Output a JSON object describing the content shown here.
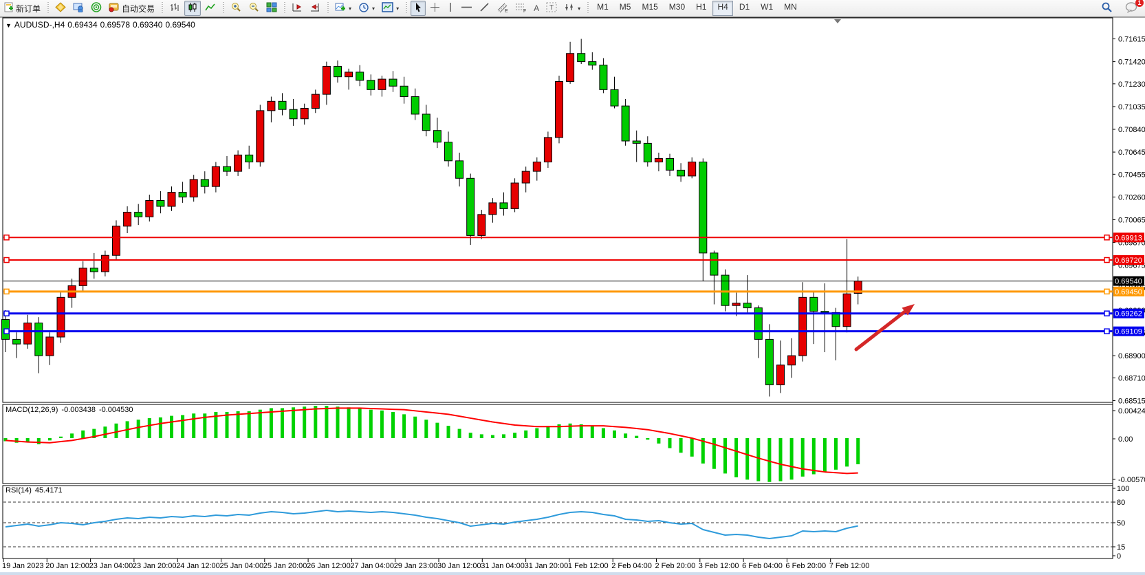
{
  "toolbar": {
    "new_order": "新订单",
    "autotrading": "自动交易",
    "timeframes": [
      "M1",
      "M5",
      "M15",
      "M30",
      "H1",
      "H4",
      "D1",
      "W1",
      "MN"
    ],
    "active_timeframe": "H4",
    "chat_badge": "1"
  },
  "chart": {
    "symbol_period": "AUDUSD-,H4",
    "ohlc": {
      "open": "0.69434",
      "high": "0.69578",
      "low": "0.69340",
      "close": "0.69540"
    },
    "macd_name": "MACD(12,26,9)",
    "macd_value": "-0.003438",
    "macd_signal_value": "-0.004530",
    "rsi_name": "RSI(14)",
    "rsi_value": "45.4171"
  },
  "chart_data": {
    "type": "candlestick",
    "title": "AUDUSD- H4",
    "colors": {
      "bull": "#e60000",
      "bear": "#00cc00",
      "wick": "#000000",
      "macd_hist": "#00d200",
      "macd_signal": "#ff0000",
      "rsi_line": "#2f9bdb",
      "line_red": "#ee0000",
      "line_orange": "#ff9800",
      "line_blue": "#0000ee",
      "line_black": "#000000",
      "arrow": "#d42727"
    },
    "price_axis_ticks": [
      "0.71615",
      "0.71420",
      "0.71230",
      "0.71035",
      "0.70840",
      "0.70645",
      "0.70455",
      "0.70260",
      "0.70065",
      "0.69870",
      "0.69675",
      "0.69485",
      "0.69290",
      "0.69095",
      "0.68900",
      "0.68710",
      "0.68515"
    ],
    "hlines": [
      {
        "price": 0.69913,
        "label": "0.69913",
        "color": "#ee0000",
        "width": 2,
        "handles": true
      },
      {
        "price": 0.6972,
        "label": "0.69720",
        "color": "#ee0000",
        "width": 2,
        "handles": true
      },
      {
        "price": 0.6954,
        "label": "0.69540",
        "color": "#000000",
        "width": 1,
        "handles": false
      },
      {
        "price": 0.6945,
        "label": "0.69450",
        "color": "#ff9800",
        "width": 3,
        "handles": true
      },
      {
        "price": 0.69262,
        "label": "0.69262",
        "color": "#0000ee",
        "width": 3,
        "handles": true
      },
      {
        "price": 0.69109,
        "label": "0.69109",
        "color": "#0000ee",
        "width": 3,
        "handles": true
      }
    ],
    "current_price": 0.6954,
    "candles": [
      [
        0.6921,
        0.6929,
        0.6893,
        0.6904
      ],
      [
        0.6904,
        0.691,
        0.6888,
        0.69
      ],
      [
        0.69,
        0.6925,
        0.6896,
        0.6918
      ],
      [
        0.6918,
        0.6923,
        0.6875,
        0.689
      ],
      [
        0.689,
        0.691,
        0.6882,
        0.6906
      ],
      [
        0.6906,
        0.6945,
        0.6901,
        0.694
      ],
      [
        0.694,
        0.6956,
        0.6931,
        0.695
      ],
      [
        0.695,
        0.6971,
        0.6945,
        0.6965
      ],
      [
        0.6965,
        0.6978,
        0.6956,
        0.6962
      ],
      [
        0.6962,
        0.698,
        0.6958,
        0.6976
      ],
      [
        0.6976,
        0.7006,
        0.6972,
        0.7001
      ],
      [
        0.7001,
        0.7018,
        0.6995,
        0.7013
      ],
      [
        0.7013,
        0.702,
        0.7002,
        0.7009
      ],
      [
        0.7009,
        0.7028,
        0.7005,
        0.7023
      ],
      [
        0.7023,
        0.7031,
        0.7012,
        0.7018
      ],
      [
        0.7018,
        0.7035,
        0.7014,
        0.703
      ],
      [
        0.703,
        0.7039,
        0.7021,
        0.7026
      ],
      [
        0.7026,
        0.7045,
        0.7022,
        0.7041
      ],
      [
        0.7041,
        0.7048,
        0.7029,
        0.7035
      ],
      [
        0.7035,
        0.7056,
        0.703,
        0.7052
      ],
      [
        0.7052,
        0.7061,
        0.7044,
        0.7048
      ],
      [
        0.7048,
        0.7066,
        0.7044,
        0.7062
      ],
      [
        0.7062,
        0.707,
        0.705,
        0.7056
      ],
      [
        0.7056,
        0.7105,
        0.7052,
        0.71
      ],
      [
        0.71,
        0.7112,
        0.709,
        0.7108
      ],
      [
        0.7108,
        0.7115,
        0.7096,
        0.7101
      ],
      [
        0.7101,
        0.711,
        0.7087,
        0.7093
      ],
      [
        0.7093,
        0.7106,
        0.7088,
        0.7102
      ],
      [
        0.7102,
        0.7118,
        0.7098,
        0.7114
      ],
      [
        0.7114,
        0.7142,
        0.7105,
        0.7138
      ],
      [
        0.7138,
        0.7143,
        0.7124,
        0.7129
      ],
      [
        0.7129,
        0.7136,
        0.7118,
        0.7133
      ],
      [
        0.7133,
        0.7139,
        0.7121,
        0.7126
      ],
      [
        0.7126,
        0.7131,
        0.7113,
        0.7118
      ],
      [
        0.7118,
        0.713,
        0.7112,
        0.7127
      ],
      [
        0.7127,
        0.7134,
        0.7116,
        0.7121
      ],
      [
        0.7121,
        0.7129,
        0.7106,
        0.7112
      ],
      [
        0.7112,
        0.7119,
        0.7092,
        0.7097
      ],
      [
        0.7097,
        0.7105,
        0.7078,
        0.7083
      ],
      [
        0.7083,
        0.7094,
        0.7068,
        0.7073
      ],
      [
        0.7073,
        0.7082,
        0.7052,
        0.7057
      ],
      [
        0.7057,
        0.7064,
        0.7035,
        0.7042
      ],
      [
        0.7042,
        0.7046,
        0.6985,
        0.6993
      ],
      [
        0.6993,
        0.7015,
        0.699,
        0.7011
      ],
      [
        0.7011,
        0.7025,
        0.7004,
        0.7021
      ],
      [
        0.7021,
        0.703,
        0.701,
        0.7016
      ],
      [
        0.7016,
        0.7042,
        0.7013,
        0.7038
      ],
      [
        0.7038,
        0.7052,
        0.703,
        0.7048
      ],
      [
        0.7048,
        0.706,
        0.704,
        0.7056
      ],
      [
        0.7056,
        0.7082,
        0.7051,
        0.7077
      ],
      [
        0.7077,
        0.713,
        0.7072,
        0.7125
      ],
      [
        0.7125,
        0.7159,
        0.7123,
        0.7149
      ],
      [
        0.7149,
        0.71615,
        0.714,
        0.7142
      ],
      [
        0.7142,
        0.715,
        0.7135,
        0.7139
      ],
      [
        0.7139,
        0.7145,
        0.7115,
        0.7118
      ],
      [
        0.7118,
        0.7129,
        0.7102,
        0.7104
      ],
      [
        0.7104,
        0.711,
        0.707,
        0.7074
      ],
      [
        0.7074,
        0.7083,
        0.7056,
        0.7072
      ],
      [
        0.7072,
        0.7078,
        0.7052,
        0.7056
      ],
      [
        0.7056,
        0.7064,
        0.7048,
        0.7059
      ],
      [
        0.7059,
        0.7063,
        0.7044,
        0.7049
      ],
      [
        0.7049,
        0.7055,
        0.7039,
        0.7044
      ],
      [
        0.7044,
        0.706,
        0.7042,
        0.7056
      ],
      [
        0.7056,
        0.7059,
        0.6954,
        0.6978
      ],
      [
        0.6978,
        0.698,
        0.6934,
        0.6959
      ],
      [
        0.6959,
        0.6964,
        0.6928,
        0.6933
      ],
      [
        0.6933,
        0.6944,
        0.6924,
        0.6935
      ],
      [
        0.6935,
        0.6959,
        0.6927,
        0.6931
      ],
      [
        0.6931,
        0.6933,
        0.6888,
        0.6904
      ],
      [
        0.6904,
        0.6917,
        0.6855,
        0.6865
      ],
      [
        0.6865,
        0.6903,
        0.6858,
        0.6882
      ],
      [
        0.6882,
        0.6905,
        0.6871,
        0.689
      ],
      [
        0.689,
        0.6953,
        0.6885,
        0.694
      ],
      [
        0.694,
        0.6945,
        0.69,
        0.6928
      ],
      [
        0.6928,
        0.6952,
        0.6893,
        0.6927
      ],
      [
        0.6927,
        0.6931,
        0.6886,
        0.6915
      ],
      [
        0.6915,
        0.699,
        0.691,
        0.6943
      ],
      [
        0.69434,
        0.69578,
        0.6934,
        0.6954
      ]
    ],
    "macd": {
      "params": "12,26,9",
      "axis": [
        "0.004243",
        "0.00",
        "-0.005709"
      ],
      "histogram": [
        -0.0004,
        -0.0006,
        -0.0005,
        -0.0008,
        -0.0003,
        0.0002,
        0.0006,
        0.001,
        0.0012,
        0.0015,
        0.0019,
        0.0022,
        0.0024,
        0.0026,
        0.0027,
        0.0029,
        0.003,
        0.0032,
        0.0032,
        0.0034,
        0.0034,
        0.0035,
        0.0035,
        0.0037,
        0.0039,
        0.0039,
        0.004,
        0.0041,
        0.0042,
        0.0042,
        0.0041,
        0.004,
        0.0039,
        0.0037,
        0.0036,
        0.0034,
        0.0031,
        0.0028,
        0.0024,
        0.002,
        0.0016,
        0.0012,
        0.0007,
        0.0005,
        0.0004,
        0.0005,
        0.0007,
        0.001,
        0.0013,
        0.0016,
        0.0018,
        0.0019,
        0.0018,
        0.0016,
        0.0013,
        0.001,
        0.0006,
        0.0003,
        -0.0002,
        -0.0007,
        -0.0013,
        -0.0019,
        -0.0024,
        -0.0033,
        -0.004,
        -0.0046,
        -0.0051,
        -0.0054,
        -0.0056,
        -0.0057,
        -0.0056,
        -0.0054,
        -0.005,
        -0.0047,
        -0.0044,
        -0.0041,
        -0.0037,
        -0.0034
      ],
      "signal": [
        -0.0003,
        -0.0004,
        -0.0005,
        -0.00055,
        -0.0006,
        -0.00045,
        -0.0003,
        -5e-05,
        0.0002,
        0.0005,
        0.0008,
        0.0011,
        0.0014,
        0.00165,
        0.0019,
        0.0021,
        0.0023,
        0.0025,
        0.0027,
        0.00285,
        0.003,
        0.0031,
        0.0032,
        0.0033,
        0.0034,
        0.0035,
        0.0036,
        0.0037,
        0.0038,
        0.00385,
        0.0039,
        0.0039,
        0.0039,
        0.00385,
        0.0038,
        0.00375,
        0.0037,
        0.00355,
        0.0034,
        0.00325,
        0.0031,
        0.00285,
        0.0026,
        0.00235,
        0.0021,
        0.0019,
        0.0017,
        0.0016,
        0.0015,
        0.0015,
        0.0015,
        0.00155,
        0.0016,
        0.0016,
        0.0016,
        0.0015,
        0.0014,
        0.00125,
        0.0011,
        0.00085,
        0.0006,
        0.0003,
        0.0,
        -0.0004,
        -0.0008,
        -0.00125,
        -0.0017,
        -0.00215,
        -0.0026,
        -0.003,
        -0.0034,
        -0.0037,
        -0.004,
        -0.0042,
        -0.0044,
        -0.0045,
        -0.0046,
        -0.00453
      ]
    },
    "rsi": {
      "period": "14",
      "axis": [
        "100",
        "80",
        "50",
        "15",
        "0"
      ],
      "levels": [
        80,
        50,
        15
      ],
      "values": [
        44,
        46,
        48,
        45,
        47,
        50,
        49,
        47,
        50,
        52,
        55,
        57,
        56,
        58,
        57,
        59,
        58,
        60,
        59,
        61,
        60,
        62,
        61,
        64,
        66,
        65,
        63,
        64,
        66,
        68,
        66,
        67,
        66,
        65,
        66,
        65,
        63,
        61,
        58,
        56,
        53,
        50,
        45,
        47,
        49,
        48,
        51,
        53,
        55,
        58,
        62,
        65,
        66,
        65,
        62,
        60,
        55,
        54,
        52,
        53,
        50,
        48,
        49,
        40,
        36,
        32,
        33,
        32,
        29,
        27,
        29,
        31,
        38,
        37,
        38,
        37,
        42,
        45.4
      ]
    },
    "dates": [
      "19 Jan 2023",
      "20 Jan 12:00",
      "23 Jan 04:00",
      "23 Jan 20:00",
      "24 Jan 12:00",
      "25 Jan 04:00",
      "25 Jan 20:00",
      "26 Jan 12:00",
      "27 Jan 04:00",
      "29 Jan 23:00",
      "30 Jan 12:00",
      "31 Jan 04:00",
      "31 Jan 20:00",
      "1 Feb 12:00",
      "2 Feb 04:00",
      "2 Feb 20:00",
      "3 Feb 12:00",
      "6 Feb 04:00",
      "6 Feb 20:00",
      "7 Feb 12:00"
    ],
    "annotations": [
      {
        "type": "arrow",
        "from": [
          1245,
          508
        ],
        "to": [
          1330,
          442
        ],
        "color": "#d42727"
      }
    ]
  }
}
